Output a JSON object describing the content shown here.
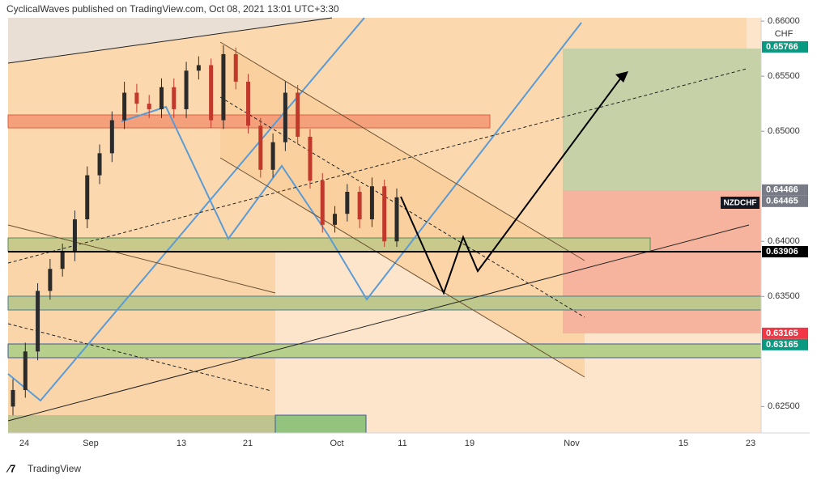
{
  "header": "CyclicalWaves published on TradingView.com, Oct 08, 2021 13:01 UTC+3:30",
  "footer": "TradingView",
  "chart_data": {
    "type": "candlestick",
    "symbol": "NZDCHF",
    "currency": "CHF",
    "ylim": [
      0.6226,
      0.6603
    ],
    "yticks": [
      {
        "value": 0.625,
        "label": "0.62500"
      },
      {
        "value": 0.635,
        "label": "0.63500"
      },
      {
        "value": 0.64,
        "label": "0.64000"
      },
      {
        "value": 0.65,
        "label": "0.65000"
      },
      {
        "value": 0.655,
        "label": "0.65500"
      },
      {
        "value": 0.66,
        "label": "0.66000"
      }
    ],
    "xtick_labels": [
      "24",
      "Sep",
      "13",
      "21",
      "Oct",
      "11",
      "19",
      "Nov",
      "15",
      "23"
    ],
    "open": [
      0.625,
      0.6265,
      0.63,
      0.6355,
      0.6375,
      0.639,
      0.642,
      0.646,
      0.648,
      0.651,
      0.6535,
      0.6525,
      0.652,
      0.654,
      0.652,
      0.6555,
      0.656,
      0.651,
      0.657,
      0.6545,
      0.6505,
      0.6465,
      0.649,
      0.6535,
      0.6495,
      0.6455,
      0.6415,
      0.6425,
      0.6445,
      0.642,
      0.645,
      0.64
    ],
    "high": [
      0.6275,
      0.6308,
      0.6362,
      0.6384,
      0.6398,
      0.6428,
      0.6468,
      0.6488,
      0.6518,
      0.6545,
      0.6543,
      0.6533,
      0.6548,
      0.6548,
      0.6563,
      0.6568,
      0.6566,
      0.6578,
      0.6576,
      0.6552,
      0.6512,
      0.6498,
      0.6545,
      0.6542,
      0.6502,
      0.6462,
      0.6432,
      0.6452,
      0.645,
      0.6458,
      0.6456,
      0.6448
    ],
    "low": [
      0.6242,
      0.6258,
      0.6292,
      0.6347,
      0.6368,
      0.6382,
      0.6412,
      0.6452,
      0.6472,
      0.6502,
      0.6517,
      0.6512,
      0.6512,
      0.6512,
      0.6512,
      0.6547,
      0.6503,
      0.6502,
      0.6538,
      0.6498,
      0.6458,
      0.6458,
      0.6482,
      0.6488,
      0.6448,
      0.6408,
      0.6408,
      0.6418,
      0.6412,
      0.6413,
      0.6395,
      0.6395
    ],
    "close": [
      0.6265,
      0.63,
      0.6355,
      0.6375,
      0.639,
      0.642,
      0.646,
      0.648,
      0.651,
      0.6535,
      0.6525,
      0.652,
      0.654,
      0.652,
      0.6555,
      0.656,
      0.651,
      0.657,
      0.6545,
      0.6505,
      0.6465,
      0.649,
      0.6535,
      0.6495,
      0.6455,
      0.6415,
      0.6425,
      0.6445,
      0.642,
      0.645,
      0.64,
      0.644
    ],
    "up_color": "#2b2b2b",
    "down_color": "#c0392b",
    "price_labels": [
      {
        "label": "0.65766",
        "value": 0.65766,
        "color": "#089981"
      },
      {
        "label": "0.64466",
        "value": 0.64466,
        "color": "#787b86"
      },
      {
        "label": "0.64465",
        "value": 0.64465,
        "color": "#787b86"
      },
      {
        "label": "0.63906",
        "value": 0.63906,
        "color": "#000000"
      },
      {
        "label": "0.63165",
        "value": 0.63165,
        "color": "#f23645"
      },
      {
        "label": "0.63165",
        "value": 0.63165,
        "color": "#089981"
      }
    ],
    "level": 0.63906
  }
}
